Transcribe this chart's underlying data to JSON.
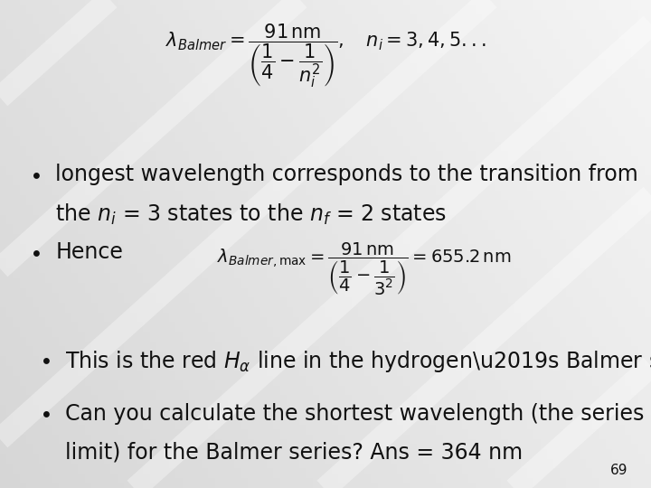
{
  "slide_number": "69",
  "font_size_formula_top": 15,
  "font_size_formula_hence": 14,
  "font_size_text": 17,
  "font_size_slide_num": 11,
  "text_color": "#111111",
  "bullet_color": "#222222",
  "bg_left_color": "#e8e8e8",
  "bg_right_color": "#f8f8f8",
  "watermark_color": "#cccccc",
  "watermark_alpha": 0.25,
  "bullet1_line1": "longest wavelength corresponds to the transition from",
  "bullet1_line2_a": "the ",
  "bullet1_line2_b": "$n_i$",
  "bullet1_line2_c": " = 3 states to the ",
  "bullet1_line2_d": "$n_f$",
  "bullet1_line2_e": "= 2 states",
  "bullet2_text": "Hence",
  "bullet3_a": "This is the red ",
  "bullet3_b": "$H_{\\alpha}$",
  "bullet3_c": " line in the hydrogen’s Balmer series",
  "bullet4_line1": "Can you calculate the shortest wavelength (the series",
  "bullet4_line2": "limit) for the Balmer series? Ans = 364 nm"
}
